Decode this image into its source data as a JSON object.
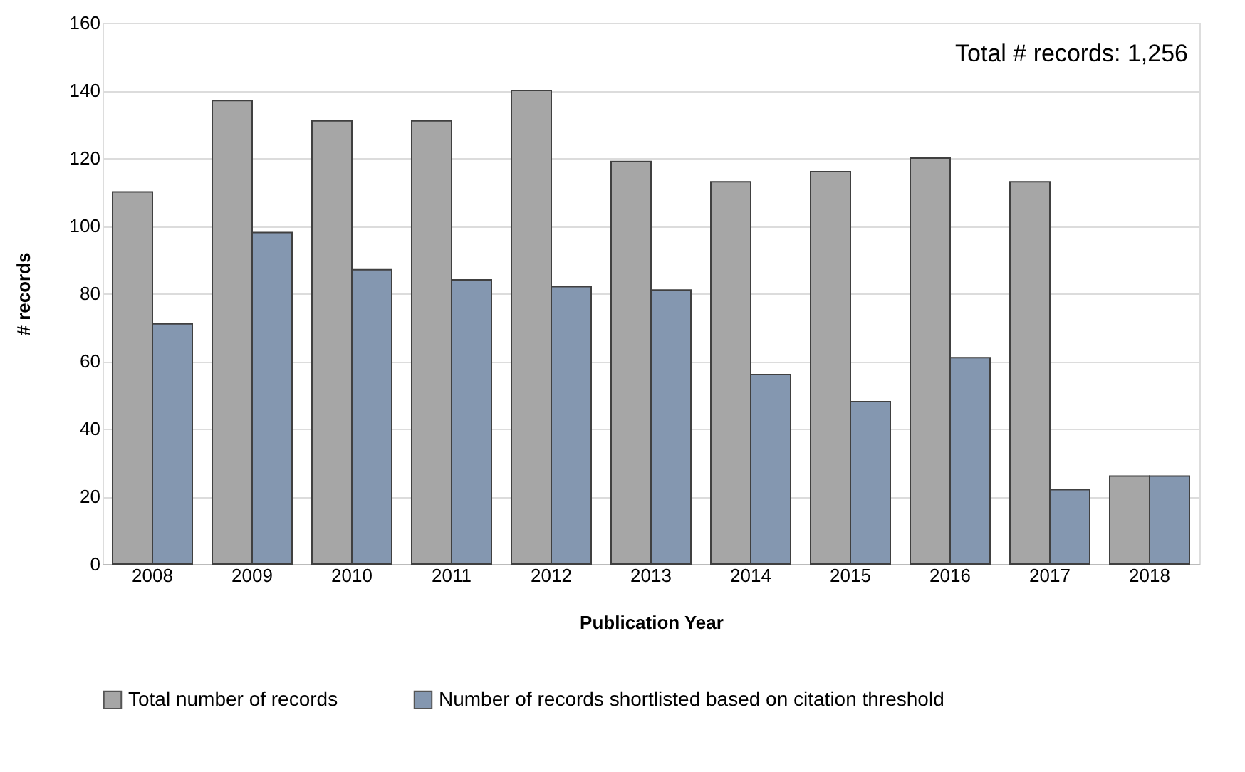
{
  "chart_data": {
    "type": "bar",
    "xlabel": "Publication Year",
    "ylabel": "# records",
    "categories": [
      "2008",
      "2009",
      "2010",
      "2011",
      "2012",
      "2013",
      "2014",
      "2015",
      "2016",
      "2017",
      "2018"
    ],
    "series": [
      {
        "name": "Total number of records",
        "color": "#a6a6a6",
        "values": [
          110,
          137,
          131,
          131,
          140,
          119,
          113,
          116,
          120,
          113,
          26
        ]
      },
      {
        "name": "Number of records shortlisted based on citation threshold",
        "color": "#8497b0",
        "values": [
          71,
          98,
          87,
          84,
          82,
          81,
          56,
          48,
          61,
          22,
          26
        ]
      }
    ],
    "ylim": [
      0,
      160
    ],
    "yticks": [
      0,
      20,
      40,
      60,
      80,
      100,
      120,
      140,
      160
    ],
    "grid": "y",
    "legend": "bottom",
    "annotations": [
      "Total # records: 1,256"
    ]
  }
}
